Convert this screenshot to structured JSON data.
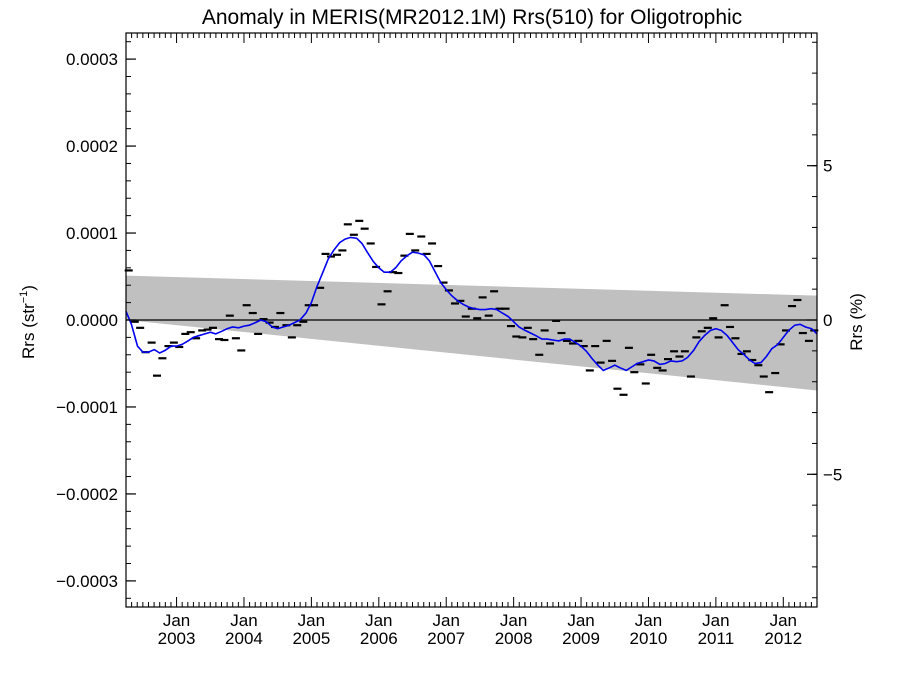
{
  "chart_data": {
    "type": "line",
    "title": "Anomaly in MERIS(MR2012.1M) Rrs(510) for Oligotrophic",
    "ylabel_left": {
      "base": "Rrs (str",
      "sup": "−1",
      "close": ")"
    },
    "ylabel_right": "Rrs (%)",
    "x_range": [
      2002.25,
      2012.5
    ],
    "y_left_range": [
      -0.00033,
      0.00033
    ],
    "y_right_range": [
      -9.3,
      9.3
    ],
    "grid": false,
    "x_ticks": [
      {
        "pos": 2003.0,
        "line1": "Jan",
        "line2": "2003"
      },
      {
        "pos": 2004.0,
        "line1": "Jan",
        "line2": "2004"
      },
      {
        "pos": 2005.0,
        "line1": "Jan",
        "line2": "2005"
      },
      {
        "pos": 2006.0,
        "line1": "Jan",
        "line2": "2006"
      },
      {
        "pos": 2007.0,
        "line1": "Jan",
        "line2": "2007"
      },
      {
        "pos": 2008.0,
        "line1": "Jan",
        "line2": "2008"
      },
      {
        "pos": 2009.0,
        "line1": "Jan",
        "line2": "2009"
      },
      {
        "pos": 2010.0,
        "line1": "Jan",
        "line2": "2010"
      },
      {
        "pos": 2011.0,
        "line1": "Jan",
        "line2": "2011"
      },
      {
        "pos": 2012.0,
        "line1": "Jan",
        "line2": "2012"
      }
    ],
    "y_left_ticks": [
      {
        "value": 0.0003,
        "label": "0.0003"
      },
      {
        "value": 0.0002,
        "label": "0.0002"
      },
      {
        "value": 0.0001,
        "label": "0.0001"
      },
      {
        "value": 0.0,
        "label": "0.0000"
      },
      {
        "value": -0.0001,
        "label": "−0.0001"
      },
      {
        "value": -0.0002,
        "label": "−0.0002"
      },
      {
        "value": -0.0003,
        "label": "−0.0003"
      }
    ],
    "y_right_ticks": [
      {
        "value": 5,
        "label": "5"
      },
      {
        "value": 0,
        "label": "0"
      },
      {
        "value": -5,
        "label": "−5"
      }
    ],
    "zero_line": true,
    "band": {
      "color": "#c0c0c0",
      "x": [
        2002.25,
        2012.5
      ],
      "upper": [
        5.1e-05,
        2.8e-05
      ],
      "lower": [
        0.0,
        -8.1e-05
      ]
    },
    "series": [
      {
        "kind": "monthly-markers",
        "color": "#000000",
        "points": [
          [
            2002.29,
            5.7e-05
          ],
          [
            2002.38,
            -2e-06
          ],
          [
            2002.46,
            -9e-06
          ],
          [
            2002.54,
            -3.7e-05
          ],
          [
            2002.63,
            -2.6e-05
          ],
          [
            2002.71,
            -6.4e-05
          ],
          [
            2002.79,
            -4.4e-05
          ],
          [
            2002.88,
            -3e-05
          ],
          [
            2002.96,
            -2.6e-05
          ],
          [
            2003.04,
            -3.1e-05
          ],
          [
            2003.13,
            -1.6e-05
          ],
          [
            2003.21,
            -1.4e-05
          ],
          [
            2003.29,
            -2.1e-05
          ],
          [
            2003.38,
            -1.2e-05
          ],
          [
            2003.46,
            -1.1e-05
          ],
          [
            2003.54,
            -9e-06
          ],
          [
            2003.63,
            -2.2e-05
          ],
          [
            2003.71,
            -2.3e-05
          ],
          [
            2003.79,
            5e-06
          ],
          [
            2003.88,
            -2.1e-05
          ],
          [
            2003.96,
            -3.5e-05
          ],
          [
            2004.04,
            1.7e-05
          ],
          [
            2004.13,
            8e-06
          ],
          [
            2004.21,
            -1.6e-05
          ],
          [
            2004.29,
            1e-06
          ],
          [
            2004.38,
            -3e-06
          ],
          [
            2004.46,
            -8e-06
          ],
          [
            2004.54,
            8e-06
          ],
          [
            2004.63,
            -6e-06
          ],
          [
            2004.71,
            -2e-05
          ],
          [
            2004.79,
            -6e-06
          ],
          [
            2004.88,
            -2e-06
          ],
          [
            2004.96,
            1.7e-05
          ],
          [
            2005.04,
            1.7e-05
          ],
          [
            2005.13,
            3.7e-05
          ],
          [
            2005.21,
            7.6e-05
          ],
          [
            2005.29,
            7.3e-05
          ],
          [
            2005.38,
            7.5e-05
          ],
          [
            2005.46,
            8e-05
          ],
          [
            2005.54,
            0.00011
          ],
          [
            2005.63,
            9.8e-05
          ],
          [
            2005.71,
            0.000114
          ],
          [
            2005.79,
            0.000105
          ],
          [
            2005.88,
            8.8e-05
          ],
          [
            2005.96,
            6.1e-05
          ],
          [
            2006.04,
            1.8e-05
          ],
          [
            2006.13,
            3.3e-05
          ],
          [
            2006.21,
            5.5e-05
          ],
          [
            2006.29,
            5.4e-05
          ],
          [
            2006.38,
            7.4e-05
          ],
          [
            2006.46,
            9.9e-05
          ],
          [
            2006.54,
            8e-05
          ],
          [
            2006.63,
            9.6e-05
          ],
          [
            2006.71,
            7.6e-05
          ],
          [
            2006.79,
            8.8e-05
          ],
          [
            2006.88,
            6.2e-05
          ],
          [
            2006.96,
            4.3e-05
          ],
          [
            2007.04,
            3.4e-05
          ],
          [
            2007.13,
            1.9e-05
          ],
          [
            2007.21,
            2.2e-05
          ],
          [
            2007.29,
            4e-06
          ],
          [
            2007.38,
            1.3e-05
          ],
          [
            2007.46,
            2e-06
          ],
          [
            2007.54,
            2.6e-05
          ],
          [
            2007.63,
            5e-06
          ],
          [
            2007.71,
            3.3e-05
          ],
          [
            2007.79,
            1.3e-05
          ],
          [
            2007.88,
            1.3e-05
          ],
          [
            2007.96,
            -7e-06
          ],
          [
            2008.04,
            -1.9e-05
          ],
          [
            2008.13,
            -2e-05
          ],
          [
            2008.21,
            -9e-06
          ],
          [
            2008.29,
            -2.2e-05
          ],
          [
            2008.38,
            -4e-05
          ],
          [
            2008.46,
            -1.2e-05
          ],
          [
            2008.54,
            -2.7e-05
          ],
          [
            2008.63,
            -1e-06
          ],
          [
            2008.71,
            -1.5e-05
          ],
          [
            2008.79,
            -2.4e-05
          ],
          [
            2008.88,
            -2.7e-05
          ],
          [
            2008.96,
            -2.4e-05
          ],
          [
            2009.04,
            -3e-05
          ],
          [
            2009.13,
            -5.8e-05
          ],
          [
            2009.21,
            -3e-05
          ],
          [
            2009.29,
            -4.9e-05
          ],
          [
            2009.38,
            -2.4e-05
          ],
          [
            2009.46,
            -4.7e-05
          ],
          [
            2009.54,
            -7.9e-05
          ],
          [
            2009.63,
            -8.6e-05
          ],
          [
            2009.71,
            -3.2e-05
          ],
          [
            2009.79,
            -6e-05
          ],
          [
            2009.88,
            -5.1e-05
          ],
          [
            2009.96,
            -7.3e-05
          ],
          [
            2010.04,
            -4e-05
          ],
          [
            2010.13,
            -5.5e-05
          ],
          [
            2010.21,
            -5.8e-05
          ],
          [
            2010.29,
            -4.5e-05
          ],
          [
            2010.38,
            -3.6e-05
          ],
          [
            2010.46,
            -4.2e-05
          ],
          [
            2010.54,
            -3.6e-05
          ],
          [
            2010.63,
            -6.5e-05
          ],
          [
            2010.71,
            -2e-05
          ],
          [
            2010.79,
            -1.3e-05
          ],
          [
            2010.88,
            -9e-06
          ],
          [
            2010.96,
            2e-06
          ],
          [
            2011.04,
            -2e-05
          ],
          [
            2011.13,
            1.7e-05
          ],
          [
            2011.21,
            -8e-06
          ],
          [
            2011.29,
            -2.1e-05
          ],
          [
            2011.38,
            -3.9e-05
          ],
          [
            2011.46,
            -3.6e-05
          ],
          [
            2011.54,
            -4.6e-05
          ],
          [
            2011.63,
            -5.2e-05
          ],
          [
            2011.71,
            -6.5e-05
          ],
          [
            2011.79,
            -8.3e-05
          ],
          [
            2011.88,
            -6.1e-05
          ],
          [
            2011.96,
            -2.8e-05
          ],
          [
            2012.04,
            -1.2e-05
          ],
          [
            2012.13,
            1.6e-05
          ],
          [
            2012.21,
            2.3e-05
          ],
          [
            2012.29,
            -1.5e-05
          ],
          [
            2012.38,
            -2.4e-05
          ],
          [
            2012.46,
            -1.2e-05
          ]
        ]
      },
      {
        "kind": "smoothed-line",
        "color": "#0000ee",
        "points": [
          [
            2002.25,
            1e-05
          ],
          [
            2002.33,
            -5e-06
          ],
          [
            2002.42,
            -3e-05
          ],
          [
            2002.5,
            -3.7e-05
          ],
          [
            2002.58,
            -3.7e-05
          ],
          [
            2002.67,
            -3.4e-05
          ],
          [
            2002.75,
            -3.8e-05
          ],
          [
            2002.83,
            -3.5e-05
          ],
          [
            2002.92,
            -3e-05
          ],
          [
            2003.0,
            -3e-05
          ],
          [
            2003.08,
            -2.8e-05
          ],
          [
            2003.17,
            -2.4e-05
          ],
          [
            2003.25,
            -2e-05
          ],
          [
            2003.33,
            -1.8e-05
          ],
          [
            2003.42,
            -1.6e-05
          ],
          [
            2003.5,
            -1.4e-05
          ],
          [
            2003.58,
            -1.6e-05
          ],
          [
            2003.67,
            -1.3e-05
          ],
          [
            2003.75,
            -1e-05
          ],
          [
            2003.83,
            -8e-06
          ],
          [
            2003.92,
            -9e-06
          ],
          [
            2004.0,
            -7e-06
          ],
          [
            2004.08,
            -6e-06
          ],
          [
            2004.17,
            -3e-06
          ],
          [
            2004.25,
            0.0
          ],
          [
            2004.33,
            -2e-06
          ],
          [
            2004.42,
            -8e-06
          ],
          [
            2004.5,
            -1e-05
          ],
          [
            2004.58,
            -8e-06
          ],
          [
            2004.67,
            -6e-06
          ],
          [
            2004.75,
            -3e-06
          ],
          [
            2004.83,
            0.0
          ],
          [
            2004.92,
            8e-06
          ],
          [
            2005.0,
            2e-05
          ],
          [
            2005.08,
            3.8e-05
          ],
          [
            2005.17,
            5.5e-05
          ],
          [
            2005.25,
            7e-05
          ],
          [
            2005.33,
            8e-05
          ],
          [
            2005.42,
            8.9e-05
          ],
          [
            2005.5,
            9.3e-05
          ],
          [
            2005.58,
            9.5e-05
          ],
          [
            2005.67,
            9.4e-05
          ],
          [
            2005.75,
            8.8e-05
          ],
          [
            2005.83,
            7.8e-05
          ],
          [
            2005.92,
            6.7e-05
          ],
          [
            2006.0,
            6e-05
          ],
          [
            2006.08,
            5.5e-05
          ],
          [
            2006.17,
            5.5e-05
          ],
          [
            2006.25,
            6e-05
          ],
          [
            2006.33,
            6.8e-05
          ],
          [
            2006.42,
            7.4e-05
          ],
          [
            2006.5,
            7.8e-05
          ],
          [
            2006.58,
            7.7e-05
          ],
          [
            2006.67,
            7.5e-05
          ],
          [
            2006.75,
            6.8e-05
          ],
          [
            2006.83,
            5.6e-05
          ],
          [
            2006.92,
            4.3e-05
          ],
          [
            2007.0,
            3.5e-05
          ],
          [
            2007.08,
            2.8e-05
          ],
          [
            2007.17,
            2.2e-05
          ],
          [
            2007.25,
            1.8e-05
          ],
          [
            2007.33,
            1.5e-05
          ],
          [
            2007.42,
            1.3e-05
          ],
          [
            2007.5,
            1.2e-05
          ],
          [
            2007.58,
            1.2e-05
          ],
          [
            2007.67,
            1.3e-05
          ],
          [
            2007.75,
            1.2e-05
          ],
          [
            2007.83,
            8e-06
          ],
          [
            2007.92,
            4e-06
          ],
          [
            2008.0,
            -2e-06
          ],
          [
            2008.08,
            -8e-06
          ],
          [
            2008.17,
            -1.2e-05
          ],
          [
            2008.25,
            -1.5e-05
          ],
          [
            2008.33,
            -1.8e-05
          ],
          [
            2008.42,
            -2.2e-05
          ],
          [
            2008.5,
            -2.2e-05
          ],
          [
            2008.58,
            -2.3e-05
          ],
          [
            2008.67,
            -2.4e-05
          ],
          [
            2008.75,
            -2.2e-05
          ],
          [
            2008.83,
            -2.2e-05
          ],
          [
            2008.92,
            -2.6e-05
          ],
          [
            2009.0,
            -3e-05
          ],
          [
            2009.08,
            -3.6e-05
          ],
          [
            2009.17,
            -4.5e-05
          ],
          [
            2009.25,
            -5.2e-05
          ],
          [
            2009.33,
            -5.8e-05
          ],
          [
            2009.42,
            -5.5e-05
          ],
          [
            2009.5,
            -5.2e-05
          ],
          [
            2009.58,
            -5.5e-05
          ],
          [
            2009.67,
            -5.8e-05
          ],
          [
            2009.75,
            -5.4e-05
          ],
          [
            2009.83,
            -5e-05
          ],
          [
            2009.92,
            -4.8e-05
          ],
          [
            2010.0,
            -4.6e-05
          ],
          [
            2010.08,
            -4.7e-05
          ],
          [
            2010.17,
            -5.1e-05
          ],
          [
            2010.25,
            -5e-05
          ],
          [
            2010.33,
            -4.7e-05
          ],
          [
            2010.42,
            -4.8e-05
          ],
          [
            2010.5,
            -4.7e-05
          ],
          [
            2010.58,
            -4.3e-05
          ],
          [
            2010.67,
            -3.5e-05
          ],
          [
            2010.75,
            -2.5e-05
          ],
          [
            2010.83,
            -1.8e-05
          ],
          [
            2010.92,
            -1.2e-05
          ],
          [
            2011.0,
            -1e-05
          ],
          [
            2011.08,
            -1.2e-05
          ],
          [
            2011.17,
            -1.8e-05
          ],
          [
            2011.25,
            -2.6e-05
          ],
          [
            2011.33,
            -3.4e-05
          ],
          [
            2011.42,
            -4e-05
          ],
          [
            2011.5,
            -4.6e-05
          ],
          [
            2011.58,
            -5e-05
          ],
          [
            2011.67,
            -4.9e-05
          ],
          [
            2011.75,
            -4.2e-05
          ],
          [
            2011.83,
            -3.3e-05
          ],
          [
            2011.92,
            -2.8e-05
          ],
          [
            2012.0,
            -2e-05
          ],
          [
            2012.08,
            -1.2e-05
          ],
          [
            2012.17,
            -6e-06
          ],
          [
            2012.25,
            -5e-06
          ],
          [
            2012.33,
            -8e-06
          ],
          [
            2012.42,
            -1e-05
          ],
          [
            2012.5,
            -1.6e-05
          ]
        ]
      }
    ]
  }
}
